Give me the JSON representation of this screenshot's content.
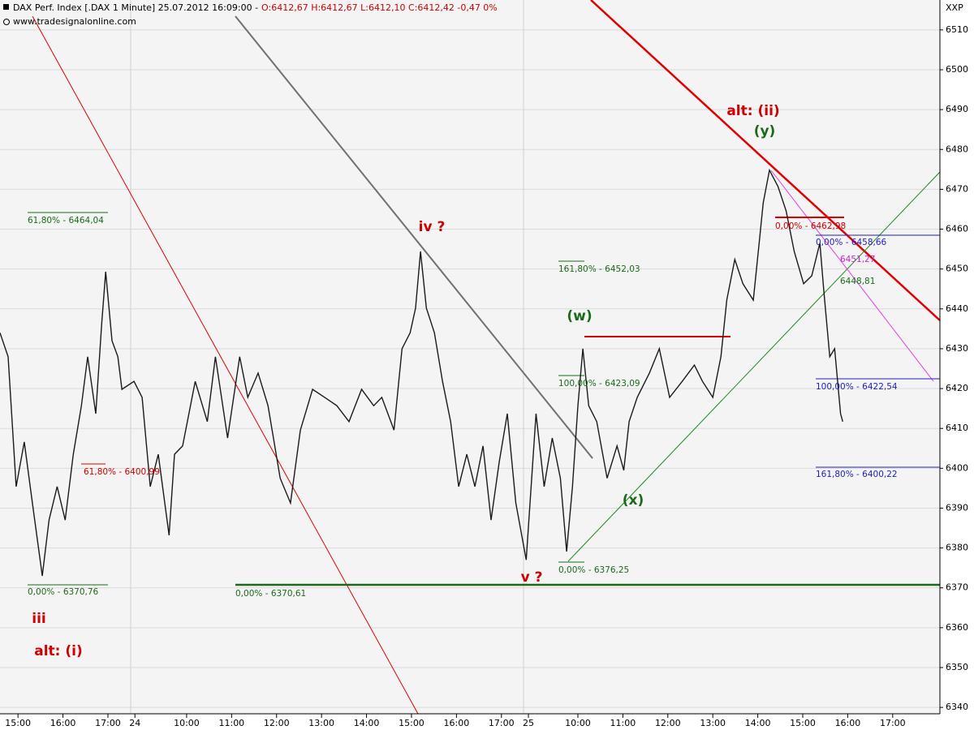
{
  "chart_data": {
    "type": "line",
    "title": "DAX Perf. Index [.DAX  1 Minute] 25.07.2012 16:09:00 -",
    "ohlc": "O:6412,67 H:6412,67 L:6412,10 C:6412,42 -0,47 0%",
    "subtitle": "www.tradesignalonline.com",
    "corner_label": "XXP",
    "color": "#1a1a1a",
    "grid": true,
    "ylim": [
      6338.4,
      6517.5
    ],
    "yticks": [
      6340,
      6350,
      6360,
      6370,
      6380,
      6390,
      6400,
      6410,
      6420,
      6430,
      6440,
      6450,
      6460,
      6470,
      6480,
      6490,
      6500,
      6510
    ],
    "xlim": [
      -0.4,
      20.5
    ],
    "xticks": [
      {
        "value": 0,
        "label": "15:00"
      },
      {
        "value": 1,
        "label": "16:00"
      },
      {
        "value": 2,
        "label": "17:00"
      },
      {
        "value": 2.6,
        "label": "24"
      },
      {
        "value": 3.75,
        "label": "10:00"
      },
      {
        "value": 4.75,
        "label": "11:00"
      },
      {
        "value": 5.75,
        "label": "12:00"
      },
      {
        "value": 6.75,
        "label": "13:00"
      },
      {
        "value": 7.75,
        "label": "14:00"
      },
      {
        "value": 8.75,
        "label": "15:00"
      },
      {
        "value": 9.75,
        "label": "16:00"
      },
      {
        "value": 10.75,
        "label": "17:00"
      },
      {
        "value": 11.35,
        "label": "25"
      },
      {
        "value": 12.45,
        "label": "10:00"
      },
      {
        "value": 13.45,
        "label": "11:00"
      },
      {
        "value": 14.45,
        "label": "12:00"
      },
      {
        "value": 15.45,
        "label": "13:00"
      },
      {
        "value": 16.45,
        "label": "14:00"
      },
      {
        "value": 17.45,
        "label": "15:00"
      },
      {
        "value": 18.45,
        "label": "16:00"
      },
      {
        "value": 19.45,
        "label": "17:00"
      }
    ],
    "x": [
      -0.4,
      -0.22,
      -0.04,
      0.14,
      0.32,
      0.54,
      0.69,
      0.87,
      1.05,
      1.23,
      1.41,
      1.55,
      1.73,
      1.86,
      1.95,
      2.09,
      2.22,
      2.31,
      2.58,
      2.76,
      2.94,
      3.12,
      3.36,
      3.48,
      3.66,
      3.94,
      4.21,
      4.39,
      4.66,
      4.93,
      5.11,
      5.34,
      5.56,
      5.83,
      6.06,
      6.28,
      6.55,
      6.82,
      7.09,
      7.36,
      7.64,
      7.91,
      8.09,
      8.36,
      8.54,
      8.72,
      8.84,
      8.95,
      9.08,
      9.26,
      9.44,
      9.62,
      9.8,
      9.98,
      10.16,
      10.34,
      10.52,
      10.7,
      10.88,
      11.07,
      11.3,
      11.52,
      11.7,
      11.88,
      12.06,
      12.2,
      12.33,
      12.45,
      12.56,
      12.69,
      12.87,
      13.1,
      13.32,
      13.47,
      13.59,
      13.77,
      14.04,
      14.26,
      14.49,
      14.77,
      15.04,
      15.22,
      15.45,
      15.63,
      15.76,
      15.94,
      16.12,
      16.35,
      16.48,
      16.57,
      16.71,
      16.9,
      17.08,
      17.26,
      17.47,
      17.65,
      17.83,
      17.92,
      18.05,
      18.16,
      18.29,
      18.34
    ],
    "values": [
      6434,
      6428,
      6395.4,
      6406.6,
      6391.3,
      6373,
      6387,
      6395.4,
      6387,
      6403.5,
      6415.7,
      6428,
      6413.7,
      6436,
      6449.3,
      6432,
      6428,
      6419.8,
      6421.8,
      6417.8,
      6395.4,
      6403.5,
      6383.2,
      6403.5,
      6405.6,
      6421.8,
      6411.7,
      6428,
      6407.6,
      6428,
      6417.8,
      6423.9,
      6415.7,
      6397.5,
      6391.3,
      6409.6,
      6419.8,
      6417.8,
      6415.7,
      6411.7,
      6419.8,
      6415.7,
      6417.8,
      6409.6,
      6430,
      6434,
      6440.2,
      6454.4,
      6440.2,
      6434,
      6421.8,
      6411.7,
      6395.4,
      6403.5,
      6395.4,
      6405.6,
      6387,
      6401.5,
      6413.7,
      6391.3,
      6377,
      6413.7,
      6395.4,
      6407.6,
      6397.5,
      6379.1,
      6395.4,
      6415.7,
      6430,
      6415.7,
      6411.7,
      6397.5,
      6405.6,
      6399.5,
      6411.7,
      6417.8,
      6423.9,
      6430,
      6417.8,
      6421.8,
      6425.9,
      6421.8,
      6417.8,
      6428,
      6442.2,
      6452.4,
      6446.3,
      6442.2,
      6456.5,
      6466.6,
      6474.8,
      6470.7,
      6464.6,
      6454.4,
      6446.3,
      6448.3,
      6456.5,
      6444.2,
      6428,
      6430,
      6413.7,
      6411.7
    ],
    "annotations": [
      "iv ?",
      "alt: (ii)",
      "(y)",
      "(w)",
      "(x)",
      "v ?",
      "iii",
      "alt: (i)",
      "61,80% - 6464,04",
      "161,80% - 6452,03",
      "100,00% - 6423,09",
      "0,00% - 6376,25",
      "0,00% - 6370,76",
      "0,00% - 6370,61",
      "61,80% - 6400,99",
      "0,00% - 6462,98",
      "0,00% - 6458,66",
      "6451,27",
      "6448,81",
      "100,00% - 6422,54",
      "161,80% - 6400,22"
    ]
  }
}
